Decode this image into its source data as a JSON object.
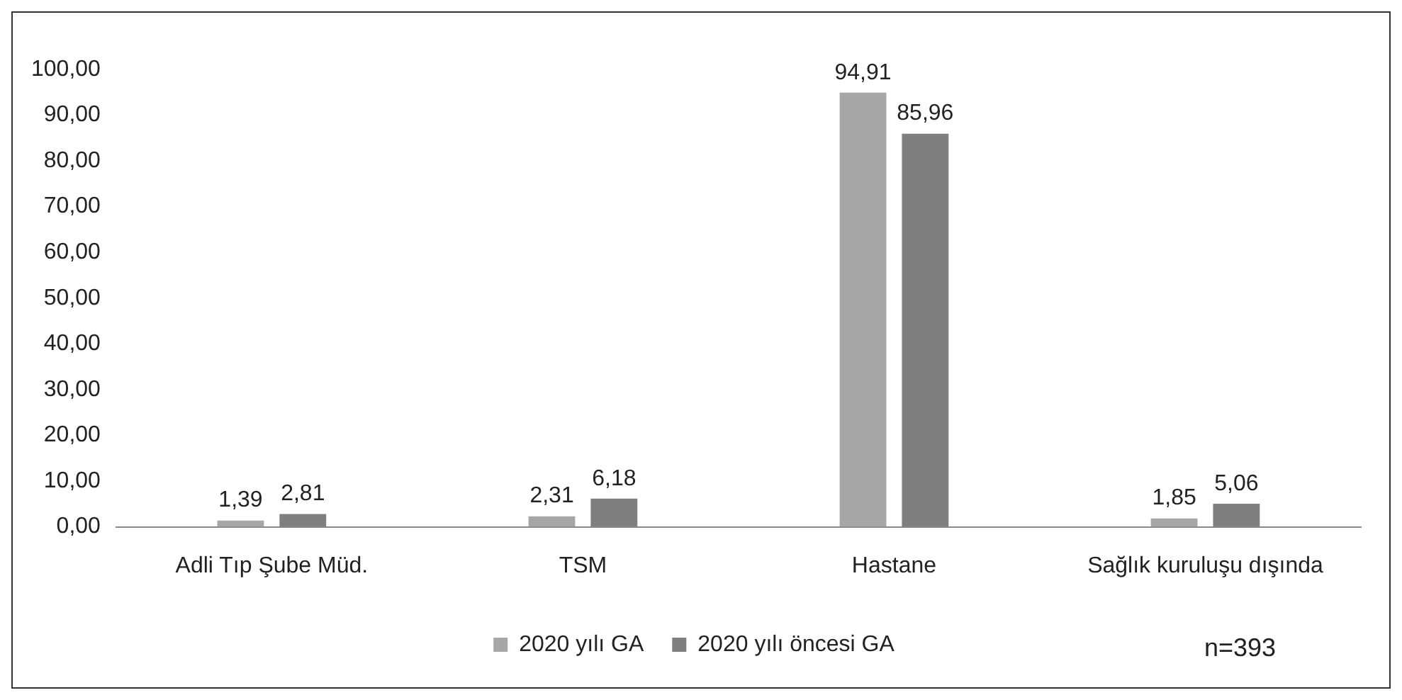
{
  "chart_data": {
    "type": "bar",
    "categories": [
      "Adli Tıp Şube Müd.",
      "TSM",
      "Hastane",
      "Sağlık kuruluşu dışında"
    ],
    "series": [
      {
        "name": "2020 yılı GA",
        "color": "#a6a6a6",
        "values": [
          1.39,
          2.31,
          94.91,
          1.85
        ],
        "value_labels": [
          "1,39",
          "2,31",
          "94,91",
          "1,85"
        ]
      },
      {
        "name": "2020 yılı öncesi GA",
        "color": "#7f7f7f",
        "values": [
          2.81,
          6.18,
          85.96,
          5.06
        ],
        "value_labels": [
          "2,81",
          "6,18",
          "85,96",
          "5,06"
        ]
      }
    ],
    "ylim": [
      0,
      100
    ],
    "yticks": [
      {
        "value": 0,
        "label": "0,00"
      },
      {
        "value": 10,
        "label": "10,00"
      },
      {
        "value": 20,
        "label": "20,00"
      },
      {
        "value": 30,
        "label": "30,00"
      },
      {
        "value": 40,
        "label": "40,00"
      },
      {
        "value": 50,
        "label": "50,00"
      },
      {
        "value": 60,
        "label": "60,00"
      },
      {
        "value": 70,
        "label": "70,00"
      },
      {
        "value": 80,
        "label": "80,00"
      },
      {
        "value": 90,
        "label": "90,00"
      },
      {
        "value": 100,
        "label": "100,00"
      }
    ],
    "grid": false,
    "legend": "bottom",
    "annotations": [
      "n=393"
    ]
  }
}
